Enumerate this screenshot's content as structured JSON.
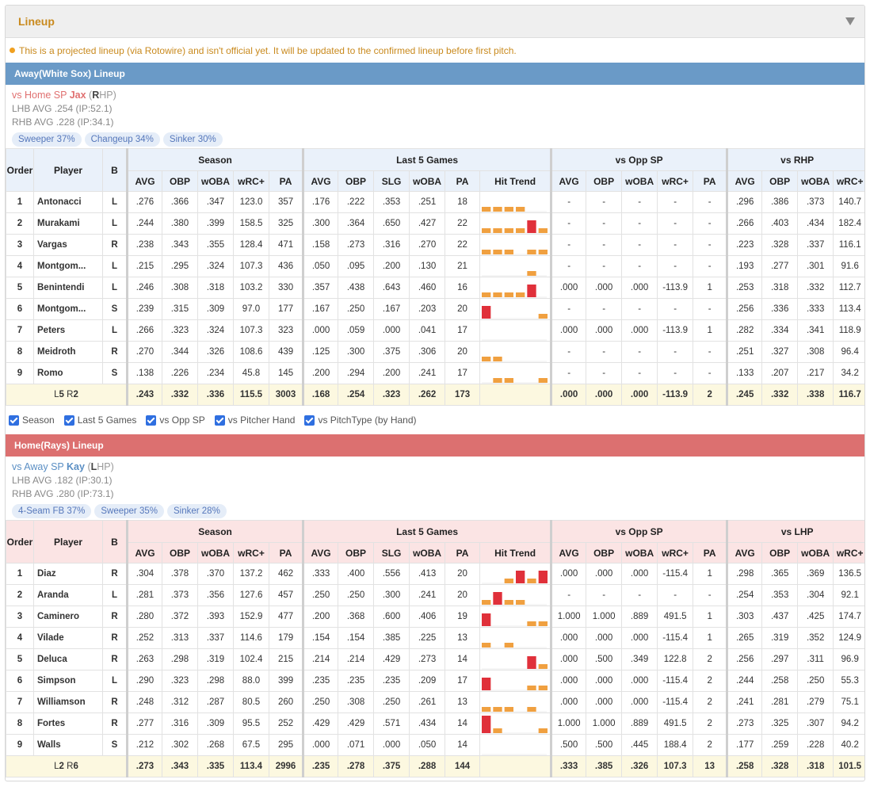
{
  "card": {
    "title": "Lineup"
  },
  "notice": "This is a projected lineup (via Rotowire) and isn't official yet. It will be updated to the confirmed lineup before first pitch.",
  "colors": {
    "away": "#6a9ac7",
    "home": "#dc7070",
    "trend_bar_orange": "#f0a040",
    "trend_bar_red": "#e0303a"
  },
  "headers": {
    "order": "Order",
    "player": "Player",
    "b": "B",
    "season": "Season",
    "last5": "Last 5 Games",
    "vsopp": "vs Opp SP",
    "season_cols": [
      "AVG",
      "OBP",
      "wOBA",
      "wRC+",
      "PA"
    ],
    "last5_cols": [
      "AVG",
      "OBP",
      "SLG",
      "wOBA",
      "PA",
      "Hit Trend"
    ],
    "opp_cols": [
      "AVG",
      "OBP",
      "wOBA",
      "wRC+",
      "PA"
    ],
    "hand_cols": [
      "AVG",
      "OBP",
      "wOBA",
      "wRC+"
    ]
  },
  "away": {
    "bar": "Away(White Sox) Lineup",
    "sp": {
      "prefix": "vs Home SP ",
      "name": "Jax",
      "hand_open": " (",
      "hand": "R",
      "hand_rest": "HP)"
    },
    "lhb": "LHB AVG .254 (IP:52.1)",
    "rhb": "RHB AVG .228 (IP:34.1)",
    "pitches": [
      "Sweeper 37%",
      "Changeup 34%",
      "Sinker 30%"
    ],
    "vshand": "vs RHP",
    "rows": [
      {
        "o": "1",
        "n": "Antonacci",
        "b": "L",
        "s": [
          ".276",
          ".366",
          ".347",
          "123.0",
          "357"
        ],
        "l": [
          ".176",
          ".222",
          ".353",
          ".251",
          "18"
        ],
        "t": [
          1,
          1,
          1,
          1,
          0,
          0
        ],
        "op": [
          "-",
          "-",
          "-",
          "-",
          "-"
        ],
        "h": [
          ".296",
          ".386",
          ".373",
          "140.7"
        ]
      },
      {
        "o": "2",
        "n": "Murakami",
        "b": "L",
        "s": [
          ".244",
          ".380",
          ".399",
          "158.5",
          "325"
        ],
        "l": [
          ".300",
          ".364",
          ".650",
          ".427",
          "22"
        ],
        "t": [
          1,
          1,
          1,
          1,
          3,
          1
        ],
        "op": [
          "-",
          "-",
          "-",
          "-",
          "-"
        ],
        "h": [
          ".266",
          ".403",
          ".434",
          "182.4"
        ]
      },
      {
        "o": "3",
        "n": "Vargas",
        "b": "R",
        "s": [
          ".238",
          ".343",
          ".355",
          "128.4",
          "471"
        ],
        "l": [
          ".158",
          ".273",
          ".316",
          ".270",
          "22"
        ],
        "t": [
          1,
          1,
          1,
          0,
          1,
          1
        ],
        "op": [
          "-",
          "-",
          "-",
          "-",
          "-"
        ],
        "h": [
          ".223",
          ".328",
          ".337",
          "116.1"
        ]
      },
      {
        "o": "4",
        "n": "Montgom...",
        "b": "L",
        "s": [
          ".215",
          ".295",
          ".324",
          "107.3",
          "436"
        ],
        "l": [
          ".050",
          ".095",
          ".200",
          ".130",
          "21"
        ],
        "t": [
          0,
          0,
          0,
          0,
          1,
          0
        ],
        "op": [
          "-",
          "-",
          "-",
          "-",
          "-"
        ],
        "h": [
          ".193",
          ".277",
          ".301",
          "91.6"
        ]
      },
      {
        "o": "5",
        "n": "Benintendi",
        "b": "L",
        "s": [
          ".246",
          ".308",
          ".318",
          "103.2",
          "330"
        ],
        "l": [
          ".357",
          ".438",
          ".643",
          ".460",
          "16"
        ],
        "t": [
          1,
          1,
          1,
          1,
          3,
          0
        ],
        "op": [
          ".000",
          ".000",
          ".000",
          "-113.9",
          "1"
        ],
        "h": [
          ".253",
          ".318",
          ".332",
          "112.7"
        ]
      },
      {
        "o": "6",
        "n": "Montgom...",
        "b": "S",
        "s": [
          ".239",
          ".315",
          ".309",
          "97.0",
          "177"
        ],
        "l": [
          ".167",
          ".250",
          ".167",
          ".203",
          "20"
        ],
        "t": [
          3,
          0,
          0,
          0,
          0,
          1
        ],
        "op": [
          "-",
          "-",
          "-",
          "-",
          "-"
        ],
        "h": [
          ".256",
          ".336",
          ".333",
          "113.4"
        ]
      },
      {
        "o": "7",
        "n": "Peters",
        "b": "L",
        "s": [
          ".266",
          ".323",
          ".324",
          "107.3",
          "323"
        ],
        "l": [
          ".000",
          ".059",
          ".000",
          ".041",
          "17"
        ],
        "t": [
          0,
          0,
          0,
          0,
          0,
          0
        ],
        "op": [
          ".000",
          ".000",
          ".000",
          "-113.9",
          "1"
        ],
        "h": [
          ".282",
          ".334",
          ".341",
          "118.9"
        ]
      },
      {
        "o": "8",
        "n": "Meidroth",
        "b": "R",
        "s": [
          ".270",
          ".344",
          ".326",
          "108.6",
          "439"
        ],
        "l": [
          ".125",
          ".300",
          ".375",
          ".306",
          "20"
        ],
        "t": [
          1,
          1,
          0,
          0,
          0,
          0
        ],
        "op": [
          "-",
          "-",
          "-",
          "-",
          "-"
        ],
        "h": [
          ".251",
          ".327",
          ".308",
          "96.4"
        ]
      },
      {
        "o": "9",
        "n": "Romo",
        "b": "S",
        "s": [
          ".138",
          ".226",
          ".234",
          "45.8",
          "145"
        ],
        "l": [
          ".200",
          ".294",
          ".200",
          ".241",
          "17"
        ],
        "t": [
          0,
          1,
          1,
          0,
          0,
          1
        ],
        "op": [
          "-",
          "-",
          "-",
          "-",
          "-"
        ],
        "h": [
          ".133",
          ".207",
          ".217",
          "34.2"
        ]
      }
    ],
    "total": {
      "label_pre": "L",
      "label_l": "5",
      "label_mid": " R",
      "label_r": "2",
      "s": [
        ".243",
        ".332",
        ".336",
        "115.5",
        "3003"
      ],
      "l": [
        ".168",
        ".254",
        ".323",
        ".262",
        "173"
      ],
      "op": [
        ".000",
        ".000",
        ".000",
        "-113.9",
        "2"
      ],
      "h": [
        ".245",
        ".332",
        ".338",
        "116.7"
      ]
    }
  },
  "checks": [
    "Season",
    "Last 5 Games",
    "vs Opp SP",
    "vs Pitcher Hand",
    "vs PitchType (by Hand)"
  ],
  "home": {
    "bar": "Home(Rays) Lineup",
    "sp": {
      "prefix": "vs Away SP ",
      "name": "Kay",
      "hand_open": " (",
      "hand": "L",
      "hand_rest": "HP)"
    },
    "lhb": "LHB AVG .182 (IP:30.1)",
    "rhb": "RHB AVG .280 (IP:73.1)",
    "pitches": [
      "4-Seam FB 37%",
      "Sweeper 35%",
      "Sinker 28%"
    ],
    "vshand": "vs LHP",
    "rows": [
      {
        "o": "1",
        "n": "Diaz",
        "b": "R",
        "s": [
          ".304",
          ".378",
          ".370",
          "137.2",
          "462"
        ],
        "l": [
          ".333",
          ".400",
          ".556",
          ".413",
          "20"
        ],
        "t": [
          0,
          0,
          1,
          3,
          1,
          3
        ],
        "op": [
          ".000",
          ".000",
          ".000",
          "-115.4",
          "1"
        ],
        "h": [
          ".298",
          ".365",
          ".369",
          "136.5"
        ]
      },
      {
        "o": "2",
        "n": "Aranda",
        "b": "L",
        "s": [
          ".281",
          ".373",
          ".356",
          "127.6",
          "457"
        ],
        "l": [
          ".250",
          ".250",
          ".300",
          ".241",
          "20"
        ],
        "t": [
          1,
          3,
          1,
          1,
          0,
          0
        ],
        "op": [
          "-",
          "-",
          "-",
          "-",
          "-"
        ],
        "h": [
          ".254",
          ".353",
          ".304",
          "92.1"
        ]
      },
      {
        "o": "3",
        "n": "Caminero",
        "b": "R",
        "s": [
          ".280",
          ".372",
          ".393",
          "152.9",
          "477"
        ],
        "l": [
          ".200",
          ".368",
          ".600",
          ".406",
          "19"
        ],
        "t": [
          3,
          0,
          0,
          0,
          1,
          1
        ],
        "op": [
          "1.000",
          "1.000",
          ".889",
          "491.5",
          "1"
        ],
        "h": [
          ".303",
          ".437",
          ".425",
          "174.7"
        ]
      },
      {
        "o": "4",
        "n": "Vilade",
        "b": "R",
        "s": [
          ".252",
          ".313",
          ".337",
          "114.6",
          "179"
        ],
        "l": [
          ".154",
          ".154",
          ".385",
          ".225",
          "13"
        ],
        "t": [
          1,
          0,
          1,
          0,
          0,
          0
        ],
        "op": [
          ".000",
          ".000",
          ".000",
          "-115.4",
          "1"
        ],
        "h": [
          ".265",
          ".319",
          ".352",
          "124.9"
        ]
      },
      {
        "o": "5",
        "n": "Deluca",
        "b": "R",
        "s": [
          ".263",
          ".298",
          ".319",
          "102.4",
          "215"
        ],
        "l": [
          ".214",
          ".214",
          ".429",
          ".273",
          "14"
        ],
        "t": [
          0,
          0,
          0,
          0,
          3,
          1
        ],
        "op": [
          ".000",
          ".500",
          ".349",
          "122.8",
          "2"
        ],
        "h": [
          ".256",
          ".297",
          ".311",
          "96.9"
        ]
      },
      {
        "o": "6",
        "n": "Simpson",
        "b": "L",
        "s": [
          ".290",
          ".323",
          ".298",
          "88.0",
          "399"
        ],
        "l": [
          ".235",
          ".235",
          ".235",
          ".209",
          "17"
        ],
        "t": [
          3,
          0,
          0,
          0,
          1,
          1
        ],
        "op": [
          ".000",
          ".000",
          ".000",
          "-115.4",
          "2"
        ],
        "h": [
          ".244",
          ".258",
          ".250",
          "55.3"
        ]
      },
      {
        "o": "7",
        "n": "Williamson",
        "b": "R",
        "s": [
          ".248",
          ".312",
          ".287",
          "80.5",
          "260"
        ],
        "l": [
          ".250",
          ".308",
          ".250",
          ".261",
          "13"
        ],
        "t": [
          1,
          1,
          1,
          0,
          1,
          0
        ],
        "op": [
          ".000",
          ".000",
          ".000",
          "-115.4",
          "2"
        ],
        "h": [
          ".241",
          ".281",
          ".279",
          "75.1"
        ]
      },
      {
        "o": "8",
        "n": "Fortes",
        "b": "R",
        "s": [
          ".277",
          ".316",
          ".309",
          "95.5",
          "252"
        ],
        "l": [
          ".429",
          ".429",
          ".571",
          ".434",
          "14"
        ],
        "t": [
          4,
          1,
          0,
          0,
          0,
          1
        ],
        "op": [
          "1.000",
          "1.000",
          ".889",
          "491.5",
          "2"
        ],
        "h": [
          ".273",
          ".325",
          ".307",
          "94.2"
        ]
      },
      {
        "o": "9",
        "n": "Walls",
        "b": "S",
        "s": [
          ".212",
          ".302",
          ".268",
          "67.5",
          "295"
        ],
        "l": [
          ".000",
          ".071",
          ".000",
          ".050",
          "14"
        ],
        "t": [
          0,
          0,
          0,
          0,
          0,
          0
        ],
        "op": [
          ".500",
          ".500",
          ".445",
          "188.4",
          "2"
        ],
        "h": [
          ".177",
          ".259",
          ".228",
          "40.2"
        ]
      }
    ],
    "total": {
      "label_pre": "L",
      "label_l": "2",
      "label_mid": " R",
      "label_r": "6",
      "s": [
        ".273",
        ".343",
        ".335",
        "113.4",
        "2996"
      ],
      "l": [
        ".235",
        ".278",
        ".375",
        ".288",
        "144"
      ],
      "op": [
        ".333",
        ".385",
        ".326",
        "107.3",
        "13"
      ],
      "h": [
        ".258",
        ".328",
        ".318",
        "101.5"
      ]
    }
  },
  "total_colors": {
    "away": {
      "s": [
        "r",
        "r",
        "g",
        "g",
        "n"
      ],
      "l": [
        "r",
        "r",
        "d",
        "r",
        "n"
      ],
      "op": [
        "r",
        "r",
        "r",
        "r",
        "n"
      ],
      "h": [
        "r",
        "g",
        "g",
        "g"
      ]
    },
    "home": {
      "s": [
        "g",
        "g",
        "r",
        "r",
        "n"
      ],
      "l": [
        "g",
        "g",
        "d",
        "g",
        "n"
      ],
      "op": [
        "g",
        "g",
        "g",
        "g",
        "n"
      ],
      "h": [
        "g",
        "r",
        "r",
        "r"
      ]
    }
  }
}
